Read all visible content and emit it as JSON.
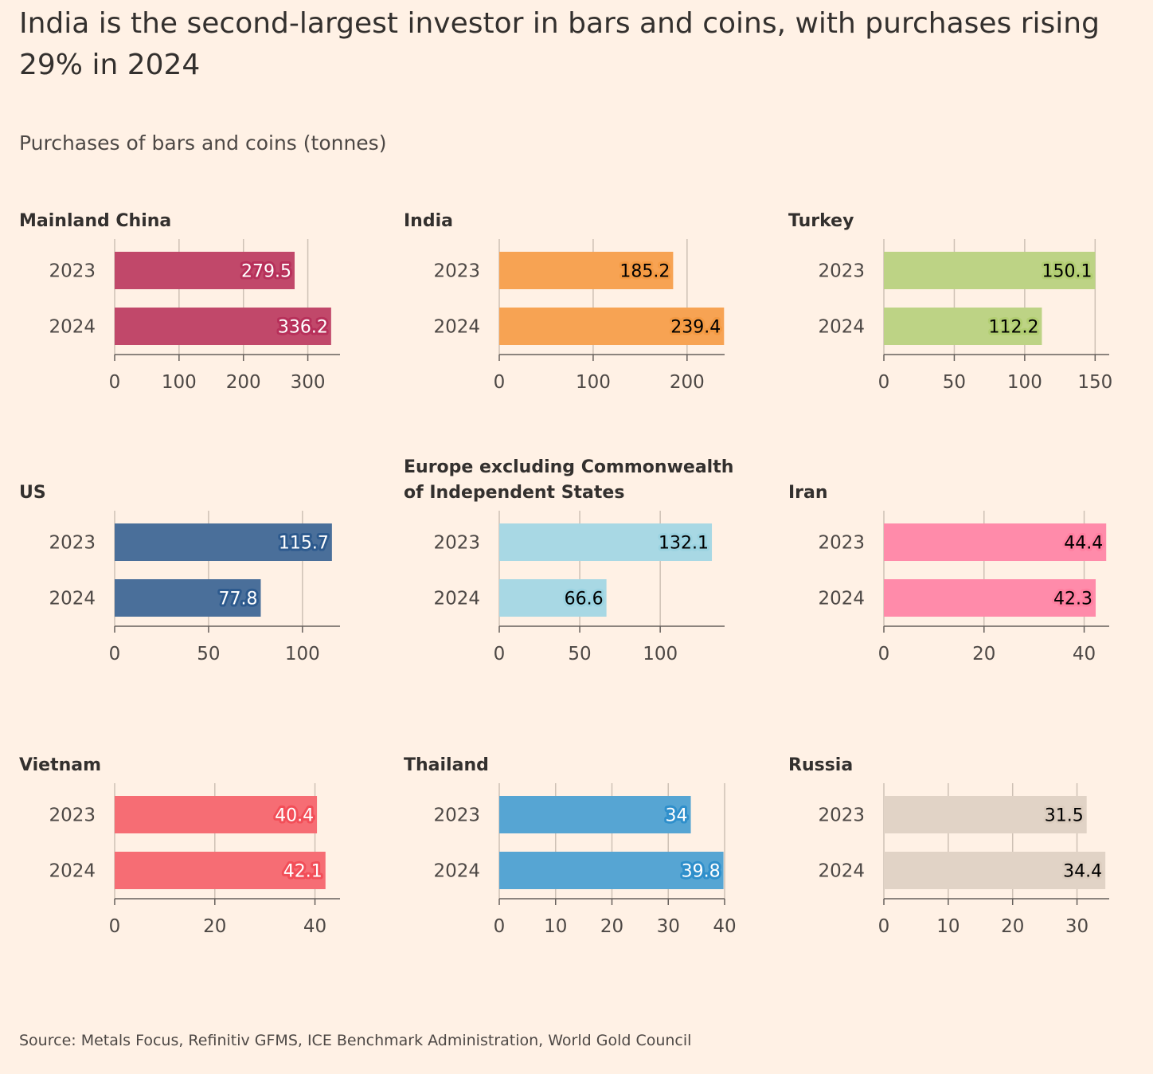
{
  "title": "India is the second-largest investor in bars and coins, with purchases rising 29% in 2024",
  "subtitle": "Purchases of bars and coins (tonnes)",
  "source": "Source: Metals Focus, Refinitiv GFMS, ICE Benchmark Administration, World Gold Council",
  "chart_data": [
    {
      "type": "bar",
      "title": "Mainland China",
      "categories": [
        "2023",
        "2024"
      ],
      "values": [
        279.5,
        336.2
      ],
      "value_labels": [
        "279.5",
        "336.2"
      ],
      "xlim": [
        0,
        350
      ],
      "ticks": [
        0,
        100,
        200,
        300
      ],
      "tick_labels": [
        "0",
        "100",
        "200",
        "300"
      ],
      "color": "#C1486A",
      "label_color": "#FFFFFF",
      "halo_color": "#B7305A"
    },
    {
      "type": "bar",
      "title": "India",
      "categories": [
        "2023",
        "2024"
      ],
      "values": [
        185.2,
        239.4
      ],
      "value_labels": [
        "185.2",
        "239.4"
      ],
      "xlim": [
        0,
        240
      ],
      "ticks": [
        0,
        100,
        200
      ],
      "tick_labels": [
        "0",
        "100",
        "200"
      ],
      "color": "#F7A353",
      "label_color": "#000000",
      "halo_color": "#F49A43"
    },
    {
      "type": "bar",
      "title": "Turkey",
      "categories": [
        "2023",
        "2024"
      ],
      "values": [
        150.1,
        112.2
      ],
      "value_labels": [
        "150.1",
        "112.2"
      ],
      "xlim": [
        0,
        160
      ],
      "ticks": [
        0,
        50,
        100,
        150
      ],
      "tick_labels": [
        "0",
        "50",
        "100",
        "150"
      ],
      "color": "#BDD385",
      "label_color": "#000000",
      "halo_color": "#B2CE72"
    },
    {
      "type": "bar",
      "title": "US",
      "categories": [
        "2023",
        "2024"
      ],
      "values": [
        115.7,
        77.8
      ],
      "value_labels": [
        "115.7",
        "77.8"
      ],
      "xlim": [
        0,
        120
      ],
      "ticks": [
        0,
        50,
        100
      ],
      "tick_labels": [
        "0",
        "50",
        "100"
      ],
      "color": "#4A6F9A",
      "label_color": "#FFFFFF",
      "halo_color": "#2D5A8E"
    },
    {
      "type": "bar",
      "title": "Europe excluding Commonwealth of Independent States",
      "title_lines": [
        "Europe excluding Commonwealth",
        "of Independent States"
      ],
      "categories": [
        "2023",
        "2024"
      ],
      "values": [
        132.1,
        66.6
      ],
      "value_labels": [
        "132.1",
        "66.6"
      ],
      "xlim": [
        0,
        140
      ],
      "ticks": [
        0,
        50,
        100
      ],
      "tick_labels": [
        "0",
        "50",
        "100"
      ],
      "color": "#A8D8E4",
      "label_color": "#000000",
      "halo_color": "#9BD3E1"
    },
    {
      "type": "bar",
      "title": "Iran",
      "categories": [
        "2023",
        "2024"
      ],
      "values": [
        44.4,
        42.3
      ],
      "value_labels": [
        "44.4",
        "42.3"
      ],
      "xlim": [
        0,
        45
      ],
      "ticks": [
        0,
        20,
        40
      ],
      "tick_labels": [
        "0",
        "20",
        "40"
      ],
      "color": "#FF8BAA",
      "label_color": "#000000",
      "halo_color": "#FF7FA0"
    },
    {
      "type": "bar",
      "title": "Vietnam",
      "categories": [
        "2023",
        "2024"
      ],
      "values": [
        40.4,
        42.1
      ],
      "value_labels": [
        "40.4",
        "42.1"
      ],
      "xlim": [
        0,
        45
      ],
      "ticks": [
        0,
        20,
        40
      ],
      "tick_labels": [
        "0",
        "20",
        "40"
      ],
      "color": "#F66D74",
      "label_color": "#FFFFFF",
      "halo_color": "#F24E58"
    },
    {
      "type": "bar",
      "title": "Thailand",
      "categories": [
        "2023",
        "2024"
      ],
      "values": [
        34,
        39.8
      ],
      "value_labels": [
        "34",
        "39.8"
      ],
      "xlim": [
        0,
        40
      ],
      "ticks": [
        0,
        10,
        20,
        30,
        40
      ],
      "tick_labels": [
        "0",
        "10",
        "20",
        "30",
        "40"
      ],
      "color": "#56A5D3",
      "label_color": "#FFFFFF",
      "halo_color": "#2F8FCB"
    },
    {
      "type": "bar",
      "title": "Russia",
      "categories": [
        "2023",
        "2024"
      ],
      "values": [
        31.5,
        34.4
      ],
      "value_labels": [
        "31.5",
        "34.4"
      ],
      "xlim": [
        0,
        35
      ],
      "ticks": [
        0,
        10,
        20,
        30
      ],
      "tick_labels": [
        "0",
        "10",
        "20",
        "30"
      ],
      "color": "#E1D3C6",
      "label_color": "#000000",
      "halo_color": "#DCCDBF"
    }
  ]
}
